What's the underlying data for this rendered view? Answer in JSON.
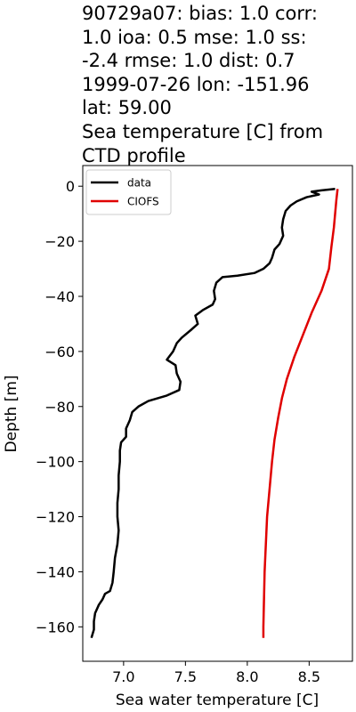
{
  "chart_data": {
    "type": "line",
    "title_lines": [
      "90729a07: bias: 1.0  corr:",
      "1.0  ioa: 0.5  mse: 1.0  ss:",
      "-2.4  rmse: 1.0  dist: 0.7",
      "1999-07-26 lon: -151.96",
      "lat: 59.00",
      "Sea temperature [C] from",
      "CTD profile"
    ],
    "xlabel": "Sea water temperature [C]",
    "ylabel": "Depth [m]",
    "xlim": [
      6.67,
      8.85
    ],
    "ylim": [
      -172.5,
      7.5
    ],
    "xticks": [
      7.0,
      7.5,
      8.0,
      8.5
    ],
    "xtick_labels": [
      "7.0",
      "7.5",
      "8.0",
      "8.5"
    ],
    "yticks": [
      0,
      -20,
      -40,
      -60,
      -80,
      -100,
      -120,
      -140,
      -160
    ],
    "ytick_labels": [
      "0",
      "−20",
      "−40",
      "−60",
      "−80",
      "−100",
      "−120",
      "−140",
      "−160"
    ],
    "grid": false,
    "legend_position": "top-left",
    "series": [
      {
        "name": "data",
        "color": "#000000",
        "points": [
          [
            8.71,
            -1
          ],
          [
            8.6,
            -1.5
          ],
          [
            8.52,
            -2
          ],
          [
            8.58,
            -3
          ],
          [
            8.48,
            -4
          ],
          [
            8.4,
            -5.5
          ],
          [
            8.35,
            -7
          ],
          [
            8.31,
            -9
          ],
          [
            8.29,
            -12
          ],
          [
            8.28,
            -15
          ],
          [
            8.29,
            -18
          ],
          [
            8.26,
            -21
          ],
          [
            8.22,
            -23
          ],
          [
            8.2,
            -26
          ],
          [
            8.18,
            -28
          ],
          [
            8.13,
            -30
          ],
          [
            8.06,
            -31.5
          ],
          [
            7.92,
            -32.5
          ],
          [
            7.8,
            -33
          ],
          [
            7.75,
            -35
          ],
          [
            7.73,
            -38
          ],
          [
            7.74,
            -41
          ],
          [
            7.72,
            -43
          ],
          [
            7.64,
            -45
          ],
          [
            7.58,
            -47
          ],
          [
            7.6,
            -50
          ],
          [
            7.55,
            -52
          ],
          [
            7.47,
            -55
          ],
          [
            7.43,
            -57
          ],
          [
            7.4,
            -60
          ],
          [
            7.35,
            -63
          ],
          [
            7.42,
            -65
          ],
          [
            7.43,
            -68
          ],
          [
            7.46,
            -71
          ],
          [
            7.45,
            -74
          ],
          [
            7.35,
            -76
          ],
          [
            7.2,
            -78
          ],
          [
            7.12,
            -80
          ],
          [
            7.07,
            -82
          ],
          [
            7.05,
            -85
          ],
          [
            7.02,
            -88
          ],
          [
            7.02,
            -91
          ],
          [
            6.98,
            -93
          ],
          [
            6.97,
            -96
          ],
          [
            6.97,
            -100
          ],
          [
            6.96,
            -105
          ],
          [
            6.96,
            -110
          ],
          [
            6.95,
            -115
          ],
          [
            6.95,
            -120
          ],
          [
            6.96,
            -125
          ],
          [
            6.95,
            -130
          ],
          [
            6.93,
            -135
          ],
          [
            6.92,
            -140
          ],
          [
            6.91,
            -144
          ],
          [
            6.89,
            -147
          ],
          [
            6.85,
            -148
          ],
          [
            6.83,
            -150
          ],
          [
            6.8,
            -152
          ],
          [
            6.77,
            -155
          ],
          [
            6.76,
            -158
          ],
          [
            6.76,
            -161
          ],
          [
            6.74,
            -164
          ]
        ]
      },
      {
        "name": "CIOFS",
        "color": "#e00000",
        "points": [
          [
            8.73,
            -1
          ],
          [
            8.72,
            -5
          ],
          [
            8.71,
            -10
          ],
          [
            8.7,
            -15
          ],
          [
            8.68,
            -22
          ],
          [
            8.66,
            -30
          ],
          [
            8.6,
            -38
          ],
          [
            8.52,
            -46
          ],
          [
            8.45,
            -54
          ],
          [
            8.38,
            -62
          ],
          [
            8.32,
            -70
          ],
          [
            8.28,
            -77
          ],
          [
            8.25,
            -84
          ],
          [
            8.22,
            -92
          ],
          [
            8.2,
            -100
          ],
          [
            8.18,
            -110
          ],
          [
            8.16,
            -120
          ],
          [
            8.15,
            -130
          ],
          [
            8.14,
            -140
          ],
          [
            8.135,
            -150
          ],
          [
            8.13,
            -160
          ],
          [
            8.13,
            -164
          ]
        ]
      }
    ]
  }
}
